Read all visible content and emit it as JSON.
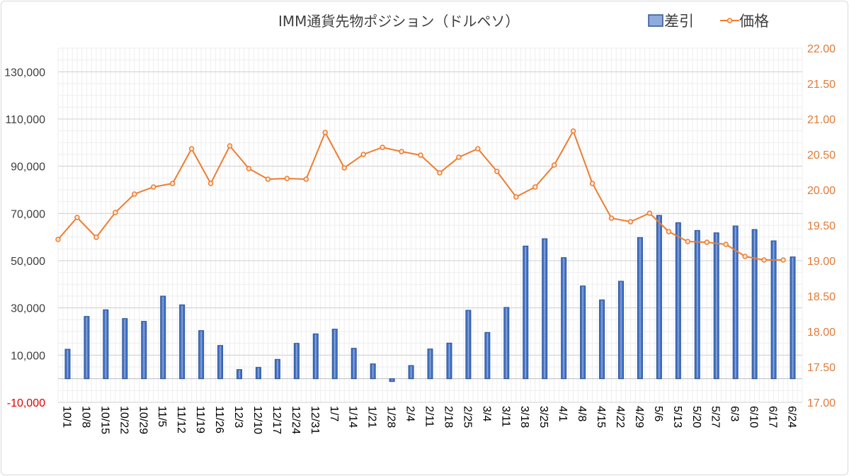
{
  "chart_data": {
    "type": "bar+line",
    "title": "IMM通貨先物ポジション（ドルペソ）",
    "categories": [
      "10/1",
      "10/8",
      "10/15",
      "10/22",
      "10/29",
      "11/5",
      "11/12",
      "11/19",
      "11/26",
      "12/3",
      "12/10",
      "12/17",
      "12/24",
      "12/31",
      "1/7",
      "1/14",
      "1/21",
      "1/28",
      "2/4",
      "2/11",
      "2/18",
      "2/25",
      "3/4",
      "3/11",
      "3/18",
      "3/25",
      "4/1",
      "4/8",
      "4/15",
      "4/22",
      "4/29",
      "5/6",
      "5/13",
      "5/20",
      "5/27",
      "6/3",
      "6/10",
      "6/17",
      "6/24"
    ],
    "series": [
      {
        "name": "差引",
        "type": "bar",
        "axis": "left",
        "color": "#4472c4",
        "values": [
          12500,
          26400,
          29200,
          25500,
          24300,
          35000,
          31300,
          20400,
          14100,
          3900,
          4800,
          8200,
          15000,
          19000,
          21000,
          12900,
          6300,
          -1200,
          5600,
          12600,
          15100,
          29000,
          19600,
          30200,
          56200,
          59300,
          51300,
          39300,
          33400,
          41300,
          59800,
          69200,
          66100,
          62800,
          61800,
          64700,
          63200,
          58400,
          51600
        ]
      },
      {
        "name": "価格",
        "type": "line",
        "axis": "right",
        "color": "#ed7d31",
        "values": [
          19.3,
          19.61,
          19.33,
          19.68,
          19.94,
          20.04,
          20.09,
          20.58,
          20.09,
          20.62,
          20.3,
          20.15,
          20.16,
          20.15,
          20.81,
          20.31,
          20.5,
          20.6,
          20.54,
          20.49,
          20.24,
          20.46,
          20.58,
          20.26,
          19.9,
          20.04,
          20.35,
          20.83,
          20.09,
          19.6,
          19.55,
          19.67,
          19.41,
          19.27,
          19.26,
          19.23,
          19.06,
          19.01,
          19.01
        ]
      }
    ],
    "y_left": {
      "range": [
        -10000,
        140000
      ],
      "ticks": [
        -10000,
        10000,
        30000,
        50000,
        70000,
        90000,
        110000,
        130000
      ],
      "tick_labels": [
        "-10,000",
        "10,000",
        "30,000",
        "50,000",
        "70,000",
        "90,000",
        "110,000",
        "130,000"
      ]
    },
    "y_right": {
      "range": [
        17.0,
        22.0
      ],
      "ticks": [
        17.0,
        17.5,
        18.0,
        18.5,
        19.0,
        19.5,
        20.0,
        20.5,
        21.0,
        21.5,
        22.0
      ],
      "tick_labels": [
        "17.00",
        "17.50",
        "18.00",
        "18.50",
        "19.00",
        "19.50",
        "20.00",
        "20.50",
        "21.00",
        "21.50",
        "22.00"
      ]
    },
    "grid": true,
    "legend": "top-right",
    "colors": {
      "bar_fill": "#4472c4",
      "bar_edge": "#2f5597",
      "line": "#ed7d31",
      "negative_tick": "#e00000",
      "right_axis_text": "#e07b39"
    }
  }
}
